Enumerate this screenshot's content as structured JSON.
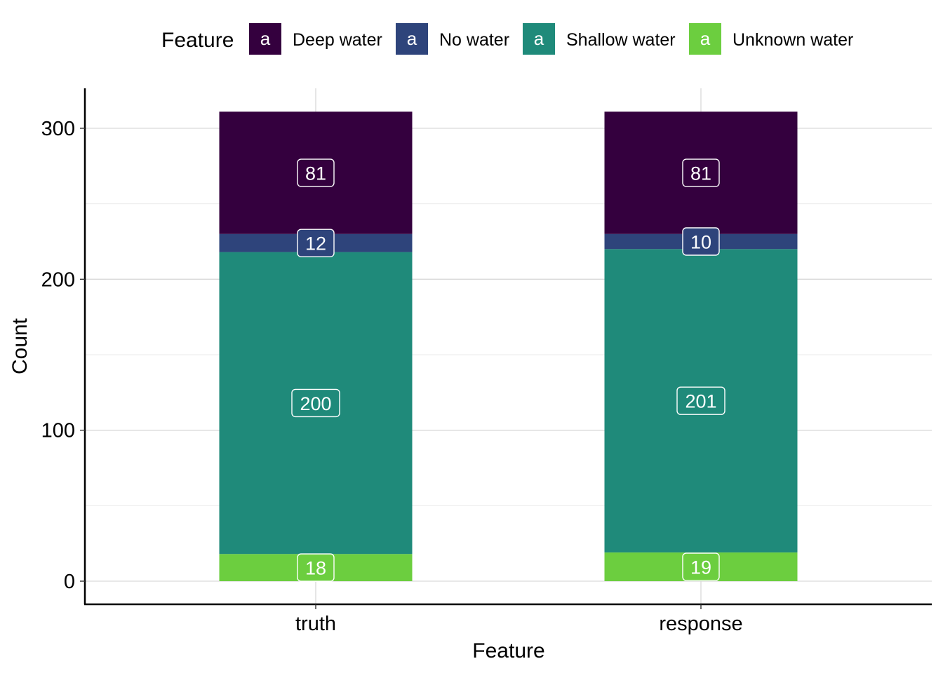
{
  "chart_data": {
    "type": "bar",
    "stacked": true,
    "categories": [
      "truth",
      "response"
    ],
    "series": [
      {
        "name": "Unknown water",
        "color": "#6CCE3F",
        "values": [
          18,
          19
        ]
      },
      {
        "name": "Shallow water",
        "color": "#1F8A7A",
        "values": [
          200,
          201
        ]
      },
      {
        "name": "No water",
        "color": "#2E447B",
        "values": [
          12,
          10
        ]
      },
      {
        "name": "Deep water",
        "color": "#34003E",
        "values": [
          81,
          81
        ]
      }
    ],
    "legend": {
      "title": "Feature",
      "position": "top",
      "key_glyph": "a",
      "order": [
        "Deep water",
        "No water",
        "Shallow water",
        "Unknown water"
      ]
    },
    "xlabel": "Feature",
    "ylabel": "Count",
    "yticks": [
      0,
      100,
      200,
      300
    ],
    "ylim": [
      -15.5,
      325
    ],
    "grid": true
  }
}
